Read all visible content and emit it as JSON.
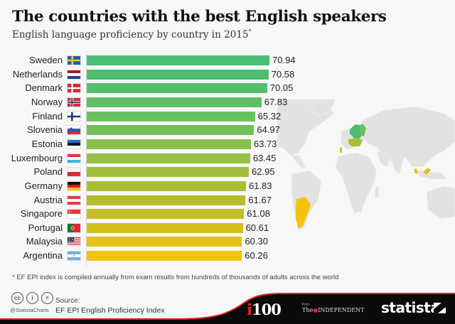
{
  "header": {
    "title": "The countries with the best English speakers",
    "subtitle": "English language proficiency by country in 2015",
    "subtitle_marker": "*"
  },
  "chart_data": {
    "type": "bar",
    "orientation": "horizontal",
    "title": "The countries with the best English speakers",
    "subtitle": "English language proficiency by country in 2015*",
    "xlabel": "",
    "ylabel": "",
    "xlim": [
      0,
      71
    ],
    "grid": false,
    "legend": null,
    "categories": [
      "Sweden",
      "Netherlands",
      "Denmark",
      "Norway",
      "Finland",
      "Slovenia",
      "Estonia",
      "Luxembourg",
      "Poland",
      "Germany",
      "Austria",
      "Singapore",
      "Portugal",
      "Malaysia",
      "Argentina"
    ],
    "values": [
      70.94,
      70.58,
      70.05,
      67.83,
      65.32,
      64.97,
      63.73,
      63.45,
      62.95,
      61.83,
      61.67,
      61.08,
      60.61,
      60.3,
      60.26
    ],
    "value_labels": [
      "70.94",
      "70.58",
      "70.05",
      "67.83",
      "65.32",
      "64.97",
      "63.73",
      "63.45",
      "62.95",
      "61.83",
      "61.67",
      "61.08",
      "60.61",
      "60.30",
      "60.26"
    ],
    "bar_colors": [
      "#46bf73",
      "#4bbf6f",
      "#52bf6b",
      "#5ec066",
      "#69c05f",
      "#72bf59",
      "#87c04c",
      "#95c043",
      "#9fbf3c",
      "#abbd35",
      "#b5bd2c",
      "#c3be22",
      "#d3c01a",
      "#e4c211",
      "#f3c40a"
    ],
    "flags": [
      "sweden-flag",
      "netherlands-flag",
      "denmark-flag",
      "norway-flag",
      "finland-flag",
      "slovenia-flag",
      "estonia-flag",
      "luxembourg-flag",
      "poland-flag",
      "germany-flag",
      "austria-flag",
      "singapore-flag",
      "portugal-flag",
      "malaysia-flag",
      "argentina-flag"
    ],
    "annotation_map": "World map highlighting listed countries in matching bar colors"
  },
  "footnote": "* EF EPI index is compiled annually from exam results from hundreds of thousands of adults across the world",
  "footer": {
    "license_icons": [
      "cc",
      "i",
      "="
    ],
    "handle": "@StatistaCharts",
    "source_label": "Source:",
    "source_text": "EF EPI English Proficiency Index",
    "partner_i": "i",
    "partner_100": "100",
    "from_label": "from",
    "independent_the": "The",
    "independent_name": "INDEPENDENT",
    "brand": "statista"
  },
  "colors": {
    "background": "#f7f7f7",
    "footer_black": "#0b0b0b",
    "footer_red": "#e3242b",
    "map_land": "#e2e2e2"
  }
}
